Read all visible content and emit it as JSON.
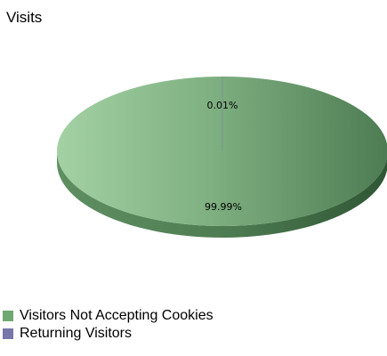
{
  "chart_data": {
    "type": "pie",
    "title": "Visits",
    "slices": [
      {
        "label": "Visitors Not Accepting Cookies",
        "value": 99.99,
        "display": "99.99%",
        "color": "#6fa872"
      },
      {
        "label": "Returning Visitors",
        "value": 0.01,
        "display": "0.01%",
        "color": "#7777aa"
      }
    ],
    "legend_position": "bottom-left",
    "style": "3d"
  }
}
